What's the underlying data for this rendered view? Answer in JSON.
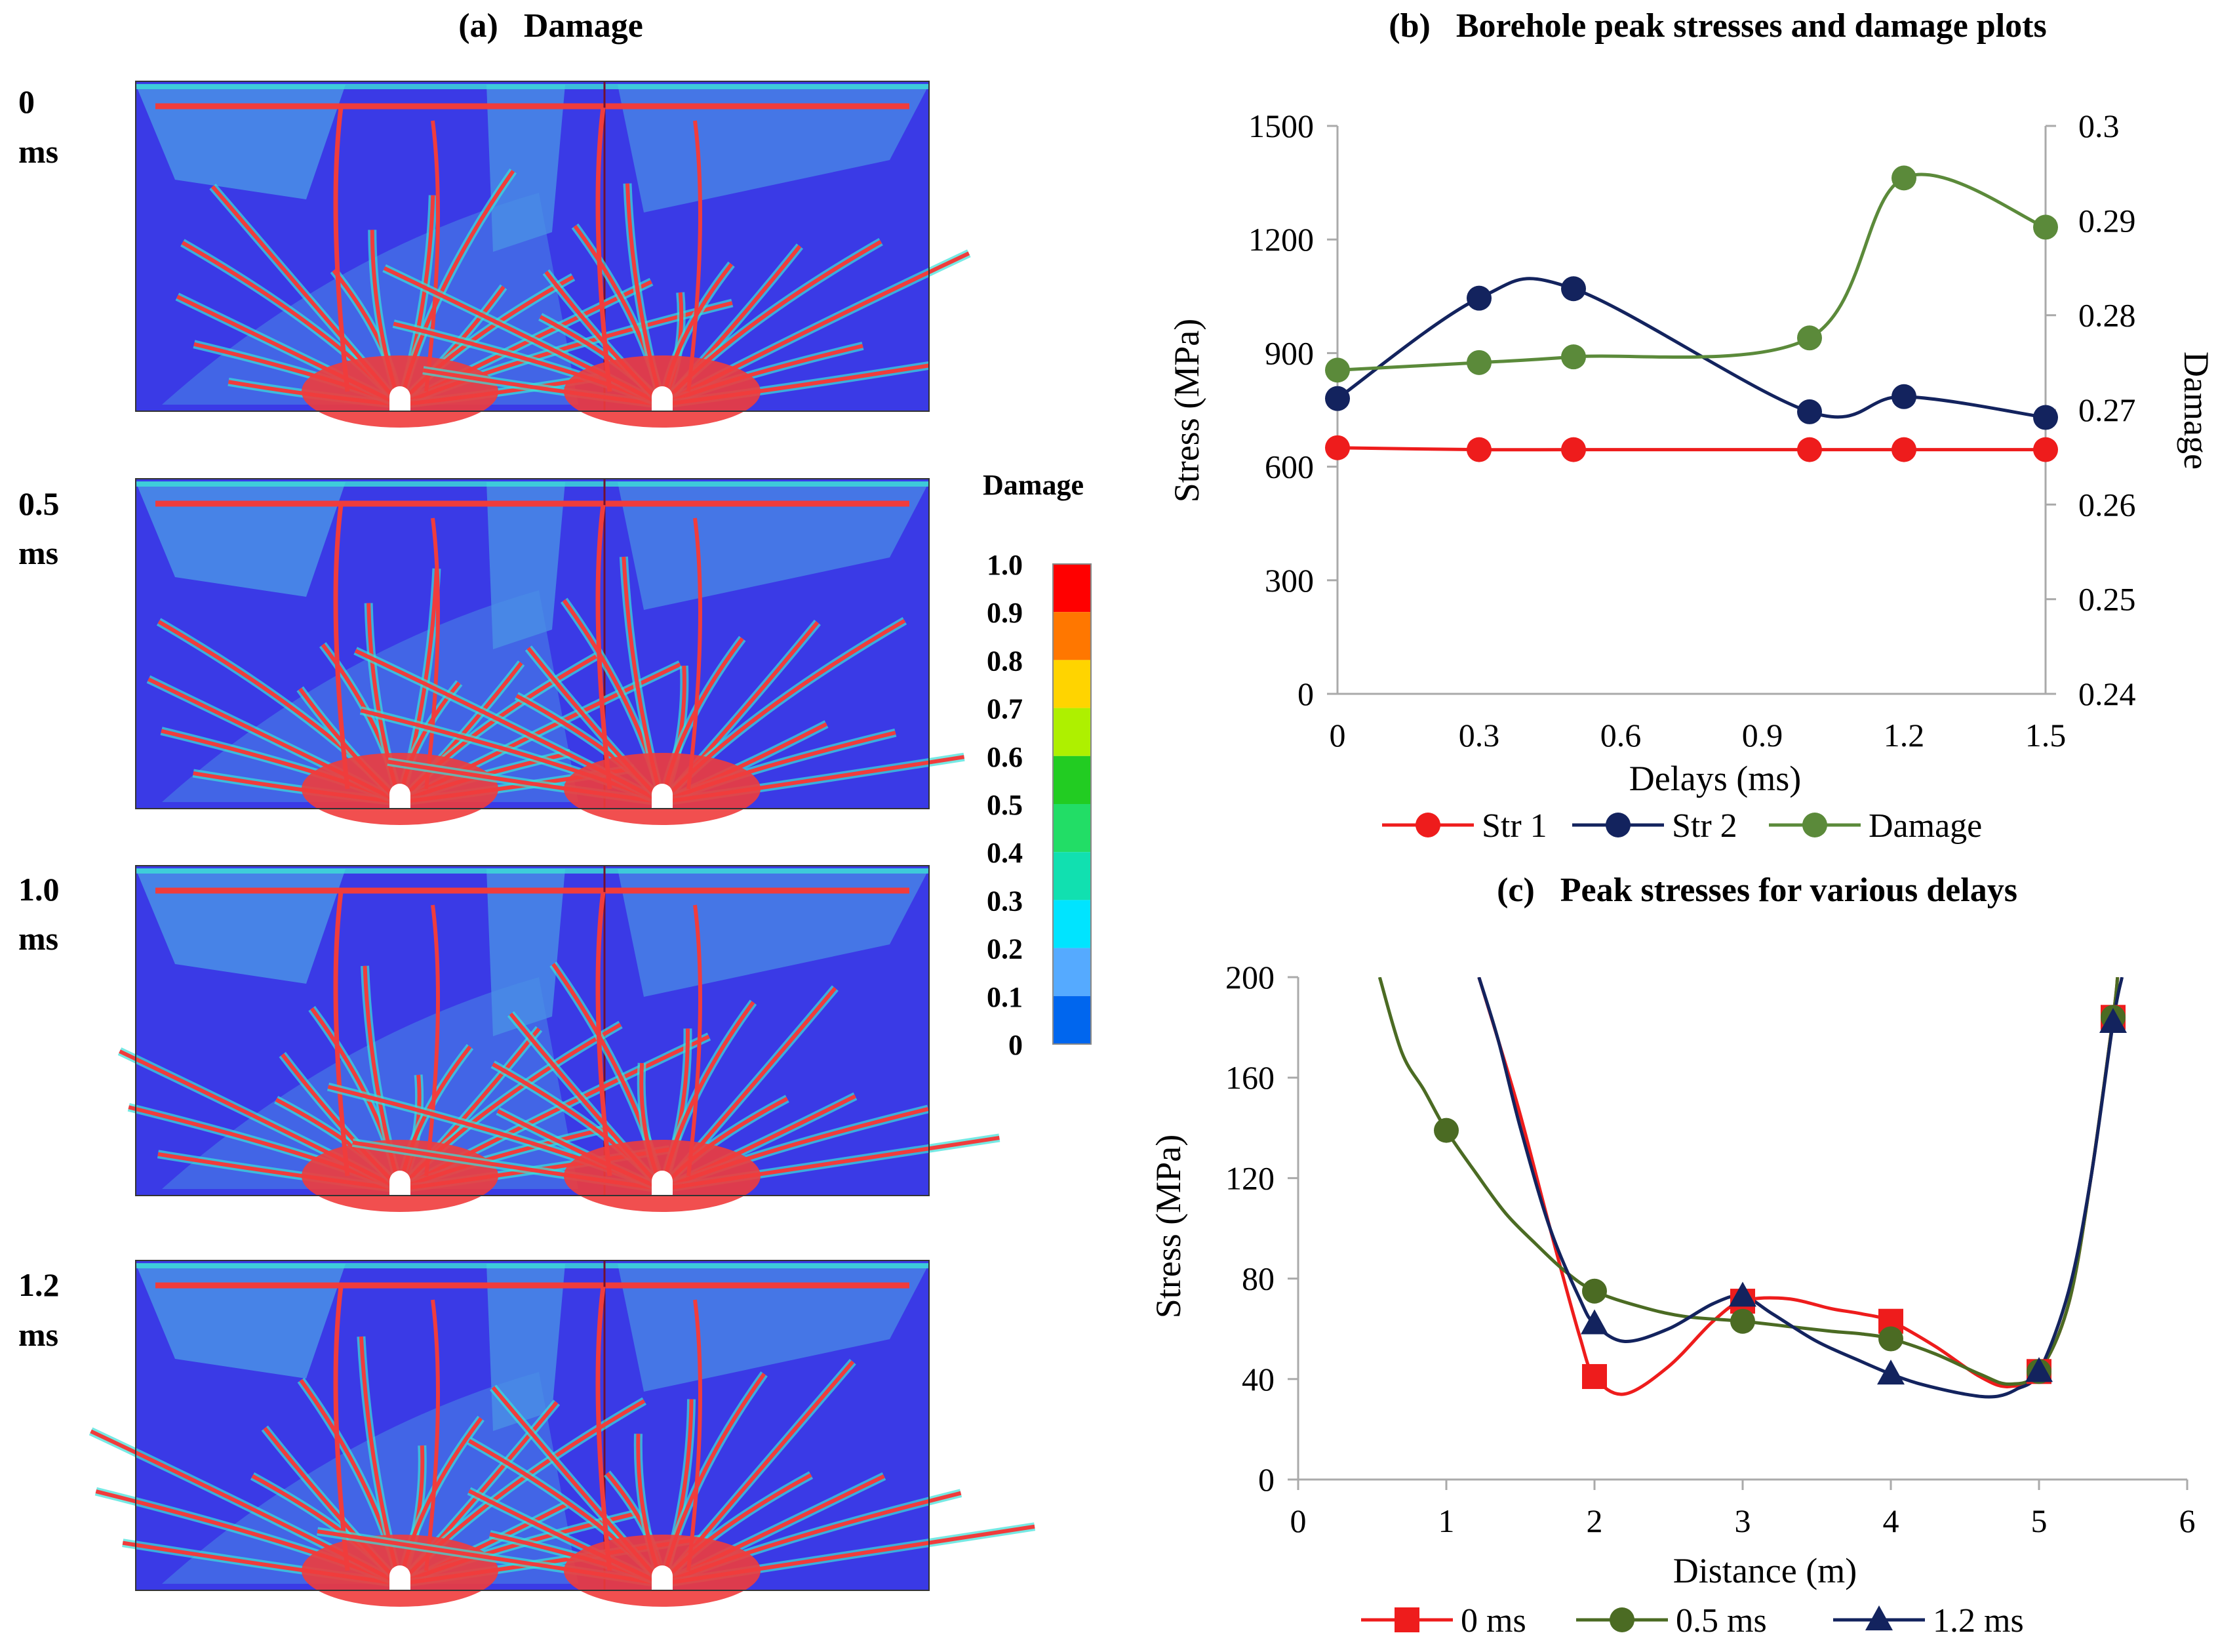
{
  "panel_a": {
    "title": "(a)   Damage",
    "rows": [
      {
        "delay_value": "0",
        "delay_unit": "ms"
      },
      {
        "delay_value": "0.5",
        "delay_unit": "ms"
      },
      {
        "delay_value": "1.0",
        "delay_unit": "ms"
      },
      {
        "delay_value": "1.2",
        "delay_unit": "ms"
      }
    ],
    "colorbar": {
      "title": "Damage",
      "ticks": [
        "1.0",
        "0.9",
        "0.8",
        "0.7",
        "0.6",
        "0.5",
        "0.4",
        "0.3",
        "0.2",
        "0.1",
        "0"
      ],
      "colors": [
        "#ff0000",
        "#ff7700",
        "#ffd400",
        "#aef000",
        "#22cc22",
        "#22dd66",
        "#11e0b0",
        "#00e4ff",
        "#55aaff",
        "#0066ee",
        "#0000dd"
      ]
    },
    "map_colors": {
      "background": "#3a3ae6",
      "light": "#4a90e6",
      "cyan": "#3ce0d8",
      "green": "#7fe04c",
      "yellow": "#e6e030",
      "red": "#f03c3c"
    }
  },
  "chart_data": [
    {
      "type": "line",
      "title": "(b)   Borehole peak stresses and damage plots",
      "xlabel": "Delays (ms)",
      "ylabel": "Stress (MPa)",
      "y2label": "Damage",
      "xlim": [
        0,
        1.5
      ],
      "ylim": [
        0,
        1500
      ],
      "y2lim": [
        0.24,
        0.3
      ],
      "x_ticks": [
        "0",
        "0.3",
        "0.6",
        "0.9",
        "1.2",
        "1.5"
      ],
      "y_ticks": [
        "0",
        "300",
        "600",
        "900",
        "1200",
        "1500"
      ],
      "y2_ticks": [
        "0.24",
        "0.25",
        "0.26",
        "0.27",
        "0.28",
        "0.29",
        "0.3"
      ],
      "grid": false,
      "legend_position": "bottom",
      "series": [
        {
          "name": "Str 1",
          "axis": "left",
          "color": "#ee1c1c",
          "marker": "circle",
          "x": [
            0,
            0.3,
            0.5,
            1.0,
            1.2,
            1.5
          ],
          "values": [
            650,
            645,
            645,
            645,
            645,
            645
          ]
        },
        {
          "name": "Str 2",
          "axis": "left",
          "color": "#13235e",
          "marker": "circle",
          "x": [
            0,
            0.3,
            0.5,
            1.0,
            1.2,
            1.5
          ],
          "values": [
            780,
            1045,
            1070,
            745,
            785,
            730
          ]
        },
        {
          "name": "Damage",
          "axis": "right",
          "color": "#5b8a3a",
          "marker": "circle",
          "x": [
            0,
            0.3,
            0.5,
            1.0,
            1.2,
            1.5
          ],
          "values": [
            0.2742,
            0.275,
            0.2756,
            0.2776,
            0.2945,
            0.2893
          ]
        }
      ]
    },
    {
      "type": "line",
      "title": "(c)   Peak stresses for various delays",
      "xlabel": "Distance (m)",
      "ylabel": "Stress (MPa)",
      "xlim": [
        0,
        6
      ],
      "ylim": [
        0,
        200
      ],
      "x_ticks": [
        "0",
        "1",
        "2",
        "3",
        "4",
        "5",
        "6"
      ],
      "y_ticks": [
        "0",
        "40",
        "80",
        "120",
        "160",
        "200"
      ],
      "grid": false,
      "legend_position": "bottom",
      "series": [
        {
          "name": "0 ms",
          "color": "#ee1c1c",
          "marker": "square",
          "x": [
            2,
            3,
            4,
            5,
            5.5
          ],
          "values": [
            41,
            71,
            63,
            43,
            184
          ],
          "curve_x": [
            1.22,
            1.35,
            1.5,
            1.7,
            1.9,
            2.0,
            2.2,
            2.5,
            2.8,
            3.0,
            3.3,
            3.6,
            3.8,
            4.0,
            4.3,
            4.6,
            4.8,
            5.0,
            5.2,
            5.35,
            5.5,
            5.53
          ],
          "curve_y": [
            200,
            175,
            145,
            100,
            57,
            41,
            34,
            45,
            63,
            71,
            72,
            68,
            66,
            63,
            53,
            41,
            37,
            43,
            70,
            120,
            184,
            200
          ]
        },
        {
          "name": "0.5 ms",
          "color": "#4b6b23",
          "marker": "circle",
          "x": [
            1,
            2,
            3,
            4,
            5,
            5.5
          ],
          "values": [
            139,
            75,
            63,
            56,
            43,
            184
          ],
          "curve_x": [
            0.55,
            0.7,
            0.85,
            1.0,
            1.2,
            1.4,
            1.6,
            1.8,
            2.0,
            2.3,
            2.6,
            3.0,
            3.3,
            3.6,
            3.8,
            4.0,
            4.3,
            4.6,
            4.8,
            5.0,
            5.2,
            5.35,
            5.5,
            5.53
          ],
          "curve_y": [
            200,
            170,
            155,
            139,
            122,
            106,
            94,
            83,
            75,
            69,
            65,
            63,
            61,
            59,
            58,
            56,
            50,
            42,
            38,
            43,
            70,
            120,
            184,
            200
          ]
        },
        {
          "name": "1.2 ms",
          "color": "#13235e",
          "marker": "triangle",
          "x": [
            2,
            3,
            4,
            5,
            5.5
          ],
          "values": [
            62,
            73,
            42,
            43,
            182
          ],
          "curve_x": [
            1.22,
            1.35,
            1.5,
            1.7,
            1.9,
            2.0,
            2.2,
            2.5,
            2.8,
            3.0,
            3.2,
            3.5,
            3.8,
            4.0,
            4.2,
            4.5,
            4.7,
            4.85,
            5.0,
            5.2,
            5.35,
            5.5,
            5.56
          ],
          "curve_y": [
            200,
            175,
            140,
            100,
            72,
            62,
            55,
            60,
            70,
            73,
            66,
            55,
            47,
            42,
            38,
            34,
            33,
            36,
            43,
            75,
            120,
            182,
            200
          ]
        }
      ]
    }
  ]
}
